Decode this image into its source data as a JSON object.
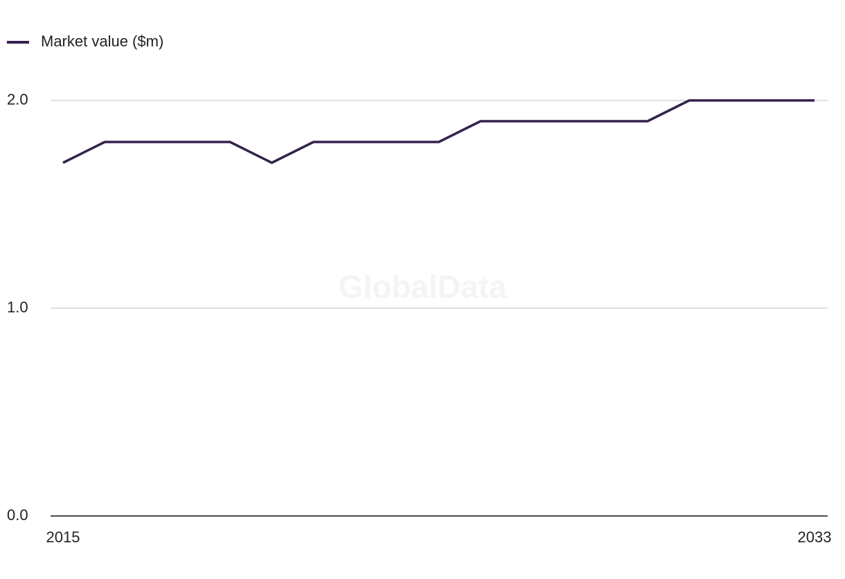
{
  "chart_data": {
    "type": "line",
    "watermark": "GlobalData",
    "x": [
      2015,
      2016,
      2017,
      2018,
      2019,
      2020,
      2021,
      2022,
      2023,
      2024,
      2025,
      2026,
      2027,
      2028,
      2029,
      2030,
      2031,
      2032,
      2033
    ],
    "series": [
      {
        "name": "Market value ($m)",
        "color": "#35214f",
        "values": [
          1.7,
          1.8,
          1.8,
          1.8,
          1.8,
          1.7,
          1.8,
          1.8,
          1.8,
          1.8,
          1.9,
          1.9,
          1.9,
          1.9,
          1.9,
          2.0,
          2.0,
          2.0,
          2.0
        ]
      }
    ],
    "xlim": [
      2015,
      2033
    ],
    "xticks": [
      2015,
      2033
    ],
    "ylim": [
      0,
      2
    ],
    "yticks": [
      {
        "value": 0,
        "label": "0.0"
      },
      {
        "value": 1,
        "label": "1.0"
      },
      {
        "value": 2,
        "label": "2.0"
      }
    ],
    "grid": true
  }
}
